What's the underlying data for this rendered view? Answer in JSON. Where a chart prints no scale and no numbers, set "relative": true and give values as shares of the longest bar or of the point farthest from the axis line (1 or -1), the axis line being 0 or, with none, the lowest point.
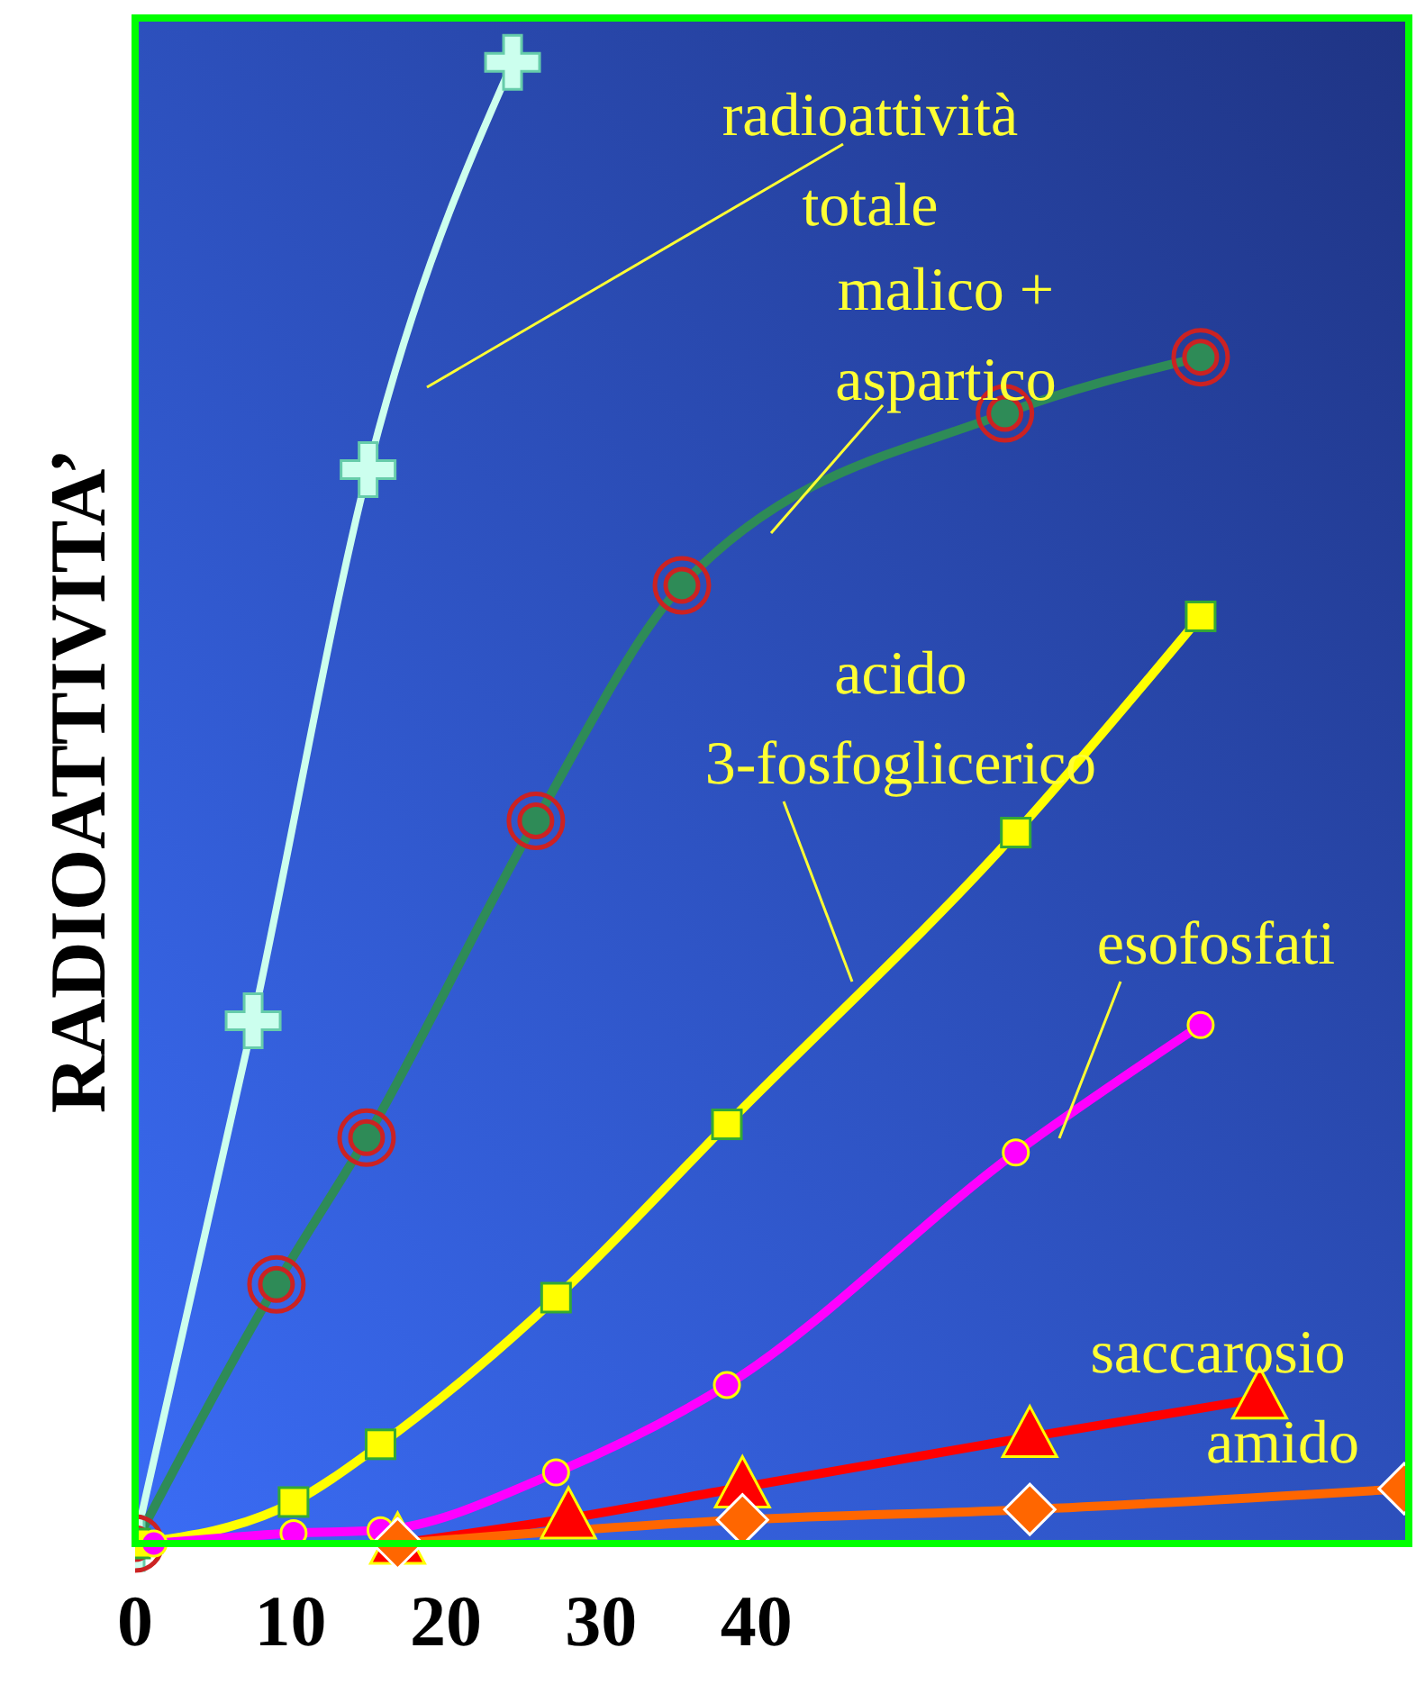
{
  "chart_data": {
    "type": "line",
    "ylabel": "RADIOATTIVITA’",
    "relative": true,
    "xlim": [
      0,
      82
    ],
    "xticks": [
      0,
      10,
      20,
      30,
      40
    ],
    "line_style": "solid",
    "series": [
      {
        "name": "radioattività totale",
        "color": "#ccffee",
        "marker": "cross",
        "x": [
          0,
          7.6,
          15,
          24.3
        ],
        "values": [
          0,
          0.353,
          0.725,
          1
        ]
      },
      {
        "name": "malico + aspartico",
        "color": "#2e8b57",
        "marker": "circle",
        "x": [
          0,
          9.1,
          14.9,
          25.8,
          35.2,
          56,
          68.6
        ],
        "values": [
          0,
          0.175,
          0.274,
          0.488,
          0.647,
          0.763,
          0.801
        ]
      },
      {
        "name": "acido 3-fosfoglicerico",
        "color": "#ffff00",
        "marker": "square",
        "x": [
          0,
          10.2,
          15.8,
          27.1,
          38.1,
          56.7,
          68.6
        ],
        "values": [
          0,
          0.028,
          0.067,
          0.166,
          0.283,
          0.48,
          0.626
        ]
      },
      {
        "name": "esofosfati",
        "color": "#ff00ff",
        "marker": "circle",
        "x": [
          1.2,
          10.2,
          15.8,
          27.1,
          38.1,
          56.7,
          68.6
        ],
        "values": [
          0,
          0.007,
          0.009,
          0.048,
          0.107,
          0.264,
          0.35
        ]
      },
      {
        "name": "saccarosio",
        "color": "#ff0000",
        "marker": "triangle",
        "x": [
          16.9,
          27.9,
          39.1,
          57.6,
          72.4
        ],
        "values": [
          0,
          0.017,
          0.038,
          0.072,
          0.098
        ]
      },
      {
        "name": "amido",
        "color": "#ff6600",
        "marker": "diamond",
        "x": [
          16.9,
          39.1,
          57.6,
          81.7
        ],
        "values": [
          0,
          0.016,
          0.023,
          0.037
        ]
      }
    ]
  }
}
